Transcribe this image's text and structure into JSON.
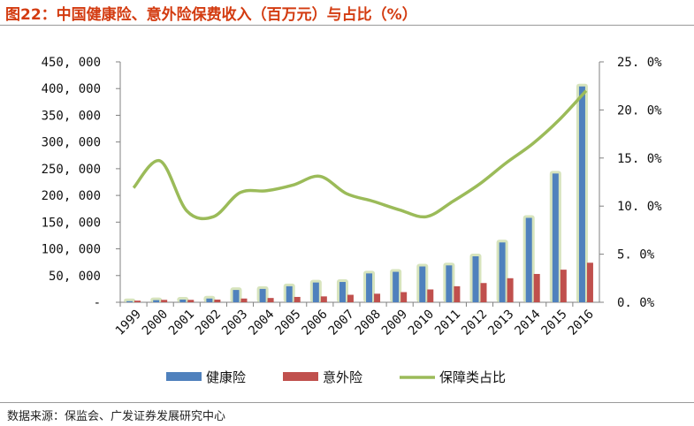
{
  "header": {
    "title": "图22：中国健康险、意外险保费收入（百万元）与占比（%）"
  },
  "footer": {
    "source": "数据来源：保监会、广发证券发展研究中心"
  },
  "colors": {
    "health": "#4f81bd",
    "accident": "#c0504d",
    "share": "#9bbb59",
    "halo": "#d7e4bd",
    "title": "#d33b10"
  },
  "chart_data": {
    "type": "bar",
    "categories": [
      "1999",
      "2000",
      "2001",
      "2002",
      "2003",
      "2004",
      "2005",
      "2006",
      "2007",
      "2008",
      "2009",
      "2010",
      "2011",
      "2012",
      "2013",
      "2014",
      "2015",
      "2016"
    ],
    "series": [
      {
        "name": "健康险",
        "type": "bar",
        "axis": "left",
        "values": [
          2000,
          4000,
          5000,
          7000,
          23000,
          25000,
          30000,
          37000,
          38000,
          54000,
          57000,
          67000,
          69000,
          86000,
          112000,
          158000,
          241000,
          404000
        ]
      },
      {
        "name": "意外险",
        "type": "bar",
        "axis": "left",
        "values": [
          3000,
          4500,
          4500,
          5000,
          7000,
          8000,
          10000,
          11000,
          14000,
          16000,
          19000,
          24000,
          30000,
          36000,
          45000,
          53000,
          61000,
          74000
        ]
      },
      {
        "name": "保障类占比",
        "type": "line",
        "axis": "right",
        "values": [
          11.9,
          14.7,
          9.5,
          8.9,
          11.4,
          11.6,
          12.2,
          13.1,
          11.3,
          10.5,
          9.6,
          8.9,
          10.5,
          12.3,
          14.5,
          16.5,
          19.0,
          22.0
        ]
      }
    ],
    "y_left": {
      "min": 0,
      "max": 450000,
      "tick_values": [
        0,
        50000,
        100000,
        150000,
        200000,
        250000,
        300000,
        350000,
        400000,
        450000
      ],
      "tick_labels": [
        "-",
        "50, 000",
        "100, 000",
        "150, 000",
        "200, 000",
        "250, 000",
        "300, 000",
        "350, 000",
        "400, 000",
        "450, 000"
      ]
    },
    "y_right": {
      "min": 0,
      "max": 25,
      "tick_values": [
        0,
        5,
        10,
        15,
        20,
        25
      ],
      "tick_labels": [
        "0. 0%",
        "5. 0%",
        "10. 0%",
        "15. 0%",
        "20. 0%",
        "25. 0%"
      ]
    },
    "grid": false,
    "legend": {
      "position": "bottom",
      "items": [
        "健康险",
        "意外险",
        "保障类占比"
      ]
    }
  }
}
